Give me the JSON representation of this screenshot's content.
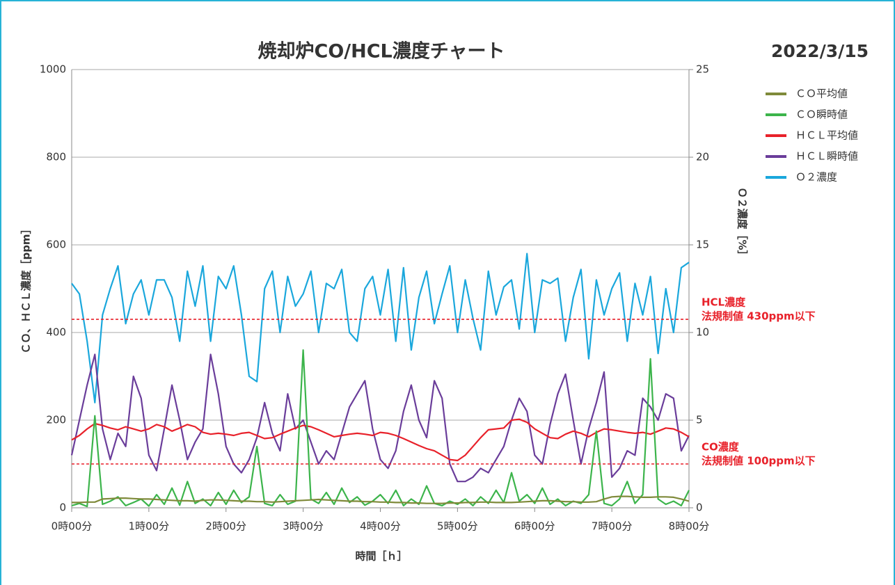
{
  "chart_data": {
    "type": "line",
    "title": "焼却炉CO/HCL濃度チャート",
    "date": "2022/3/15",
    "xlabel": "時間［ｈ］",
    "ylabel": "ＣＯ、ＨＣＬ濃度［ppm］",
    "y2label": "Ｏ２濃度［%］",
    "xlim": [
      0,
      8
    ],
    "xticks": [
      {
        "value": 0,
        "label": "0時00分"
      },
      {
        "value": 1,
        "label": "1時00分"
      },
      {
        "value": 2,
        "label": "2時00分"
      },
      {
        "value": 3,
        "label": "3時00分"
      },
      {
        "value": 4,
        "label": "4時00分"
      },
      {
        "value": 5,
        "label": "5時00分"
      },
      {
        "value": 6,
        "label": "6時00分"
      },
      {
        "value": 7,
        "label": "7時00分"
      },
      {
        "value": 8,
        "label": "8時00分"
      }
    ],
    "ylim": [
      0,
      1000
    ],
    "yticks": [
      0,
      200,
      400,
      600,
      800,
      1000
    ],
    "y2lim": [
      0,
      25
    ],
    "y2ticks": [
      0,
      5,
      10,
      15,
      20,
      25
    ],
    "grid": true,
    "legend": "right",
    "x": [
      0,
      0.1,
      0.2,
      0.3,
      0.4,
      0.5,
      0.6,
      0.7,
      0.8,
      0.9,
      1,
      1.1,
      1.2,
      1.3,
      1.4,
      1.5,
      1.6,
      1.7,
      1.8,
      1.9,
      2,
      2.1,
      2.2,
      2.3,
      2.4,
      2.5,
      2.6,
      2.7,
      2.8,
      2.9,
      3,
      3.1,
      3.2,
      3.3,
      3.4,
      3.5,
      3.6,
      3.7,
      3.8,
      3.9,
      4,
      4.1,
      4.2,
      4.3,
      4.4,
      4.5,
      4.6,
      4.7,
      4.8,
      4.9,
      5,
      5.1,
      5.2,
      5.3,
      5.4,
      5.5,
      5.6,
      5.7,
      5.8,
      5.9,
      6,
      6.1,
      6.2,
      6.3,
      6.4,
      6.5,
      6.6,
      6.7,
      6.8,
      6.9,
      7,
      7.1,
      7.2,
      7.3,
      7.4,
      7.5,
      7.6,
      7.7,
      7.8,
      7.9,
      8
    ],
    "series": [
      {
        "name": "ＣＯ平均値",
        "color": "#7f8a3a",
        "values": [
          12,
          12,
          13,
          13,
          20,
          21,
          22,
          22,
          21,
          20,
          20,
          19,
          18,
          17,
          16,
          16,
          15,
          17,
          18,
          18,
          17,
          16,
          15,
          15,
          14,
          14,
          13,
          14,
          15,
          16,
          17,
          18,
          19,
          18,
          17,
          16,
          15,
          15,
          14,
          14,
          13,
          13,
          12,
          12,
          11,
          11,
          10,
          10,
          10,
          11,
          11,
          12,
          12,
          13,
          13,
          12,
          12,
          12,
          13,
          14,
          15,
          16,
          16,
          15,
          14,
          14,
          13,
          13,
          14,
          20,
          25,
          26,
          26,
          25,
          24,
          24,
          25,
          25,
          24,
          20,
          15
        ]
      },
      {
        "name": "ＣＯ瞬時値",
        "color": "#3cb44b",
        "values": [
          5,
          10,
          3,
          210,
          8,
          15,
          25,
          5,
          12,
          20,
          4,
          30,
          8,
          45,
          6,
          60,
          10,
          20,
          5,
          35,
          8,
          40,
          12,
          25,
          140,
          10,
          5,
          30,
          8,
          15,
          360,
          20,
          10,
          35,
          8,
          45,
          12,
          25,
          6,
          15,
          30,
          10,
          40,
          5,
          20,
          8,
          50,
          10,
          5,
          15,
          8,
          20,
          5,
          25,
          10,
          40,
          12,
          80,
          15,
          30,
          10,
          45,
          8,
          20,
          5,
          15,
          10,
          30,
          175,
          10,
          5,
          20,
          60,
          10,
          30,
          340,
          20,
          8,
          15,
          5,
          40
        ]
      },
      {
        "name": "ＨＣＬ平均値",
        "color": "#e8212a",
        "values": [
          155,
          165,
          180,
          192,
          188,
          182,
          178,
          185,
          180,
          175,
          180,
          190,
          185,
          175,
          182,
          190,
          185,
          172,
          168,
          170,
          168,
          165,
          170,
          172,
          165,
          158,
          160,
          168,
          175,
          182,
          188,
          185,
          178,
          170,
          162,
          165,
          168,
          170,
          168,
          165,
          172,
          170,
          165,
          158,
          150,
          142,
          135,
          130,
          120,
          110,
          108,
          120,
          140,
          160,
          178,
          180,
          182,
          200,
          202,
          195,
          180,
          170,
          160,
          158,
          168,
          175,
          170,
          162,
          172,
          180,
          178,
          175,
          172,
          170,
          172,
          168,
          175,
          182,
          180,
          172,
          162
        ]
      },
      {
        "name": "ＨＣＬ瞬時値",
        "color": "#6a3d9a",
        "values": [
          120,
          200,
          280,
          350,
          180,
          110,
          170,
          140,
          300,
          250,
          120,
          85,
          180,
          280,
          200,
          110,
          150,
          180,
          350,
          260,
          140,
          100,
          80,
          110,
          160,
          240,
          170,
          130,
          260,
          180,
          200,
          150,
          100,
          130,
          110,
          170,
          230,
          260,
          290,
          180,
          110,
          90,
          130,
          220,
          280,
          200,
          160,
          290,
          250,
          100,
          60,
          60,
          70,
          90,
          80,
          110,
          140,
          200,
          250,
          220,
          120,
          100,
          190,
          260,
          305,
          200,
          100,
          180,
          240,
          310,
          70,
          90,
          130,
          120,
          250,
          230,
          200,
          260,
          250,
          130,
          165
        ]
      },
      {
        "name": "Ｏ２濃度",
        "color": "#1aa7dc",
        "axis": "y2",
        "values": [
          12.8,
          12.2,
          9.5,
          6,
          11,
          12.5,
          13.8,
          10.5,
          12.2,
          13,
          11,
          13,
          13,
          12,
          9.5,
          13.5,
          11.5,
          13.8,
          9.5,
          13.2,
          12.5,
          13.8,
          11,
          7.5,
          7.2,
          12.5,
          13.5,
          10,
          13.2,
          11.5,
          12.2,
          13.5,
          10,
          12.8,
          12.5,
          13.6,
          10,
          9.5,
          12.5,
          13.2,
          11,
          13.6,
          9.5,
          13.7,
          9,
          12,
          13.5,
          10.5,
          12.2,
          13.8,
          10,
          13,
          10.8,
          9,
          13.5,
          11,
          12.6,
          13,
          10.2,
          14.5,
          10,
          13,
          12.8,
          13.1,
          9.5,
          12,
          13.6,
          8.5,
          13,
          11,
          12.5,
          13.4,
          9.5,
          12.8,
          11,
          13.2,
          8.8,
          12.5,
          10,
          13.7,
          14
        ]
      }
    ],
    "reference_lines": [
      {
        "value": 430,
        "color": "#e8212a",
        "label_lines": [
          "HCL濃度",
          "法規制値 430ppm以下"
        ]
      },
      {
        "value": 100,
        "color": "#e8212a",
        "label_lines": [
          "CO濃度",
          "法規制値 100ppm以下"
        ]
      }
    ]
  }
}
